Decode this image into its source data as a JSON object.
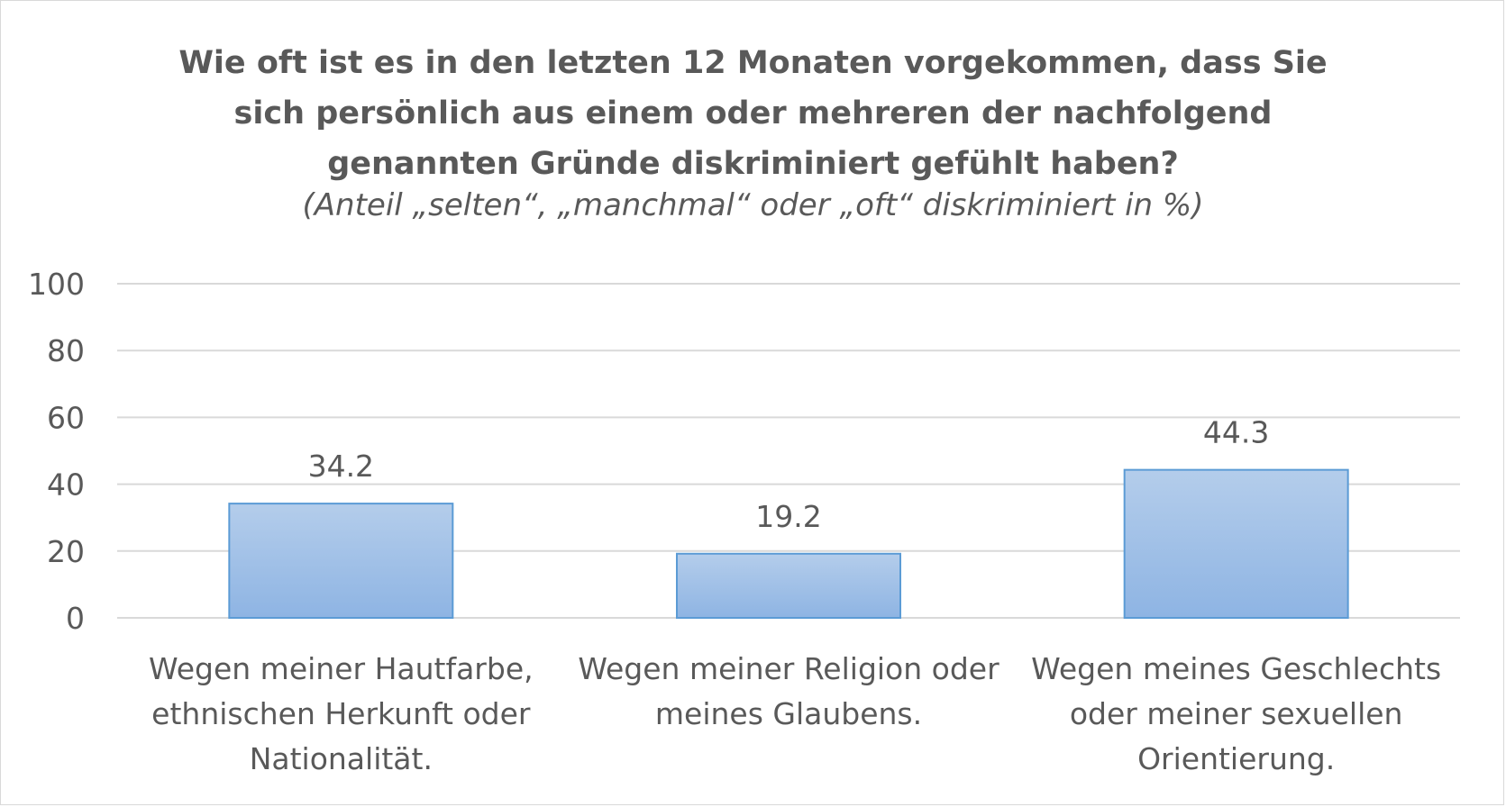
{
  "chart_data": {
    "type": "bar",
    "title_lines": [
      "Wie oft ist es in den letzten 12 Monaten vorgekommen, dass Sie",
      "sich persönlich aus einem oder mehreren der nachfolgend",
      "genannten Gründe diskriminiert gefühlt haben?"
    ],
    "subtitle": "(Anteil „selten“, „manchmal“ oder „oft“ diskriminiert in %)",
    "categories": [
      "Wegen meiner Hautfarbe, ethnischen Herkunft oder Nationalität.",
      "Wegen meiner Religion oder meines Glaubens.",
      "Wegen meines Geschlechts oder meiner sexuellen Orientierung."
    ],
    "category_lines": [
      [
        "Wegen meiner Hautfarbe,",
        "ethnischen Herkunft oder",
        "Nationalität."
      ],
      [
        "Wegen meiner Religion oder",
        "meines Glaubens."
      ],
      [
        "Wegen meines Geschlechts",
        "oder meiner sexuellen",
        "Orientierung."
      ]
    ],
    "values": [
      34.2,
      19.2,
      44.3
    ],
    "data_labels": [
      "34.2",
      "19.2",
      "44.3"
    ],
    "ylim": [
      0,
      100
    ],
    "yticks": [
      0,
      20,
      40,
      60,
      80,
      100
    ],
    "ytick_labels": [
      "0",
      "20",
      "40",
      "60",
      "80",
      "100"
    ],
    "grid": true,
    "legend": "none",
    "bar_color_top": "#b4cdeb",
    "bar_color_bottom": "#8eb4e3",
    "bar_border": "#5b9bd5",
    "grid_color": "#d9d9d9",
    "text_color": "#595959"
  }
}
